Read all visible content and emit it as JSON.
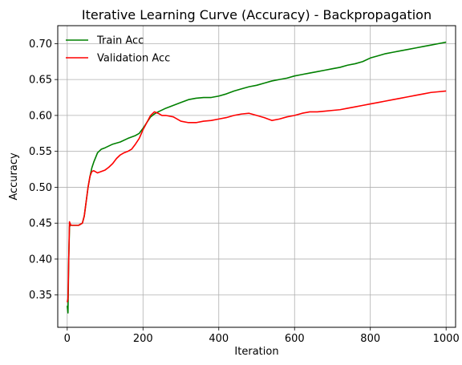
{
  "chart_data": {
    "type": "line",
    "title": "Iterative Learning Curve (Accuracy) - Backpropagation",
    "xlabel": "Iteration",
    "ylabel": "Accuracy",
    "xlim": [
      -25,
      1025
    ],
    "ylim": [
      0.305,
      0.725
    ],
    "xticks": [
      0,
      200,
      400,
      600,
      800,
      1000
    ],
    "xtick_labels": [
      "0",
      "200",
      "400",
      "600",
      "800",
      "1000"
    ],
    "yticks": [
      0.35,
      0.4,
      0.45,
      0.5,
      0.55,
      0.6,
      0.65,
      0.7
    ],
    "ytick_labels": [
      "0.35",
      "0.40",
      "0.45",
      "0.50",
      "0.55",
      "0.60",
      "0.65",
      "0.70"
    ],
    "grid": true,
    "legend_position": "top-left",
    "series": [
      {
        "name": "Train Acc",
        "color": "#008000",
        "x": [
          0,
          2,
          4,
          6,
          8,
          10,
          20,
          30,
          40,
          45,
          50,
          55,
          60,
          65,
          70,
          80,
          90,
          100,
          120,
          140,
          160,
          180,
          190,
          200,
          210,
          220,
          230,
          240,
          260,
          280,
          300,
          320,
          340,
          360,
          380,
          400,
          420,
          440,
          460,
          480,
          500,
          520,
          540,
          560,
          580,
          600,
          620,
          640,
          660,
          680,
          700,
          720,
          740,
          760,
          780,
          800,
          820,
          840,
          860,
          880,
          900,
          920,
          940,
          960,
          980,
          1000
        ],
        "y": [
          0.335,
          0.325,
          0.4,
          0.445,
          0.447,
          0.447,
          0.447,
          0.447,
          0.45,
          0.46,
          0.48,
          0.5,
          0.515,
          0.527,
          0.535,
          0.548,
          0.553,
          0.555,
          0.56,
          0.563,
          0.568,
          0.572,
          0.575,
          0.582,
          0.59,
          0.598,
          0.602,
          0.605,
          0.61,
          0.614,
          0.618,
          0.622,
          0.624,
          0.625,
          0.625,
          0.627,
          0.63,
          0.634,
          0.637,
          0.64,
          0.642,
          0.645,
          0.648,
          0.65,
          0.652,
          0.655,
          0.657,
          0.659,
          0.661,
          0.663,
          0.665,
          0.667,
          0.67,
          0.672,
          0.675,
          0.68,
          0.683,
          0.686,
          0.688,
          0.69,
          0.692,
          0.694,
          0.696,
          0.698,
          0.7,
          0.702
        ]
      },
      {
        "name": "Validation Acc",
        "color": "#ff0000",
        "x": [
          0,
          2,
          4,
          6,
          8,
          10,
          20,
          30,
          40,
          45,
          50,
          55,
          60,
          65,
          70,
          80,
          90,
          100,
          110,
          120,
          130,
          140,
          150,
          160,
          170,
          180,
          190,
          200,
          210,
          220,
          230,
          240,
          250,
          260,
          280,
          300,
          320,
          340,
          360,
          380,
          400,
          420,
          440,
          460,
          480,
          500,
          520,
          540,
          560,
          580,
          600,
          620,
          640,
          660,
          680,
          700,
          720,
          740,
          760,
          780,
          800,
          820,
          840,
          860,
          880,
          900,
          920,
          940,
          960,
          980,
          1000
        ],
        "y": [
          0.34,
          0.345,
          0.4,
          0.452,
          0.449,
          0.447,
          0.447,
          0.447,
          0.45,
          0.46,
          0.48,
          0.5,
          0.515,
          0.522,
          0.523,
          0.52,
          0.522,
          0.524,
          0.528,
          0.533,
          0.54,
          0.545,
          0.548,
          0.55,
          0.553,
          0.56,
          0.568,
          0.58,
          0.59,
          0.6,
          0.605,
          0.603,
          0.6,
          0.6,
          0.598,
          0.592,
          0.59,
          0.59,
          0.592,
          0.593,
          0.595,
          0.597,
          0.6,
          0.602,
          0.603,
          0.6,
          0.597,
          0.593,
          0.595,
          0.598,
          0.6,
          0.603,
          0.605,
          0.605,
          0.606,
          0.607,
          0.608,
          0.61,
          0.612,
          0.614,
          0.616,
          0.618,
          0.62,
          0.622,
          0.624,
          0.626,
          0.628,
          0.63,
          0.632,
          0.633,
          0.634
        ]
      }
    ]
  }
}
